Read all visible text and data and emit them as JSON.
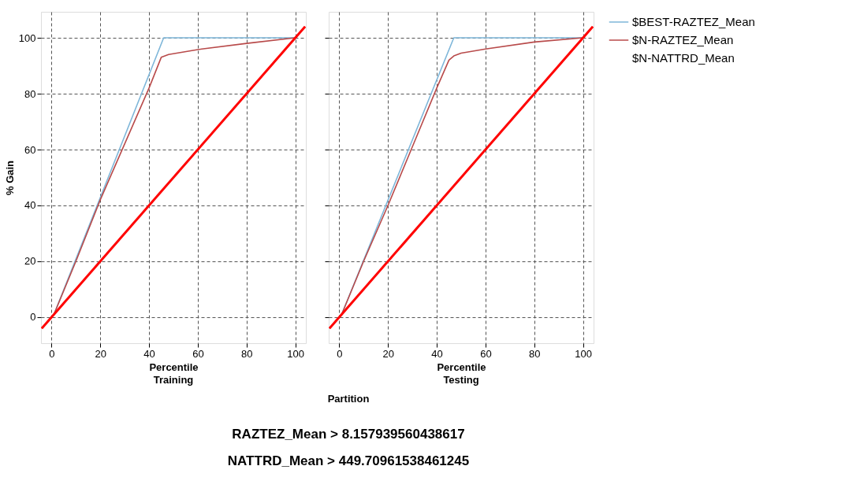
{
  "chart_data": [
    {
      "type": "line",
      "title": "Training",
      "xlabel": "Percentile",
      "ylabel": "% Gain",
      "xlim": [
        -4.3,
        104.3
      ],
      "ylim": [
        -9.3,
        109.3
      ],
      "xticks": [
        0,
        20,
        40,
        60,
        80,
        100
      ],
      "yticks": [
        0,
        20,
        40,
        60,
        80,
        100
      ],
      "grid": true,
      "marker": "none",
      "line_style": "solid",
      "legend": "right",
      "series": [
        {
          "name": "$BEST-RAZTEZ_Mean",
          "color": "#7eb6d9",
          "x": [
            1,
            46,
            100
          ],
          "values": [
            1,
            100,
            100
          ]
        },
        {
          "name": "$N-RAZTEZ_Mean",
          "color": "#b84a4a",
          "x": [
            1,
            10,
            20,
            30,
            40,
            45,
            48,
            60,
            80,
            100
          ],
          "values": [
            1,
            20,
            42,
            62,
            82,
            93,
            94,
            95.8,
            98,
            100
          ]
        },
        {
          "name": "$N-NATTRD_Mean"
        },
        {
          "color": "#ff0000",
          "x": [
            -4,
            104
          ],
          "values": [
            -4,
            104
          ]
        }
      ]
    },
    {
      "type": "line",
      "title": "Testing",
      "xlabel": "Percentile",
      "xlim": [
        -4.3,
        104.3
      ],
      "ylim": [
        -9.3,
        109.3
      ],
      "xticks": [
        0,
        20,
        40,
        60,
        80,
        100
      ],
      "yticks": [
        0,
        20,
        40,
        60,
        80,
        100
      ],
      "tick_labels": "x",
      "grid": true,
      "marker": "none",
      "line_style": "solid",
      "legend": "right",
      "annotations": [
        "Partition",
        "RAZTEZ_Mean > 8.157939560438617",
        "NATTRD_Mean > 449.70961538461245"
      ],
      "series": [
        {
          "name": "$BEST-RAZTEZ_Mean",
          "color": "#7eb6d9",
          "x": [
            1,
            47,
            100
          ],
          "values": [
            1,
            100,
            100
          ]
        },
        {
          "name": "$N-RAZTEZ_Mean",
          "color": "#b84a4a",
          "x": [
            1,
            10,
            20,
            30,
            40,
            45,
            47,
            50,
            60,
            80,
            100
          ],
          "values": [
            1,
            20,
            40,
            61,
            82,
            92,
            93.5,
            94.5,
            96,
            98.5,
            100
          ]
        },
        {
          "color": "#ff0000",
          "x": [
            -4,
            104
          ],
          "values": [
            -4,
            104
          ]
        }
      ]
    }
  ]
}
